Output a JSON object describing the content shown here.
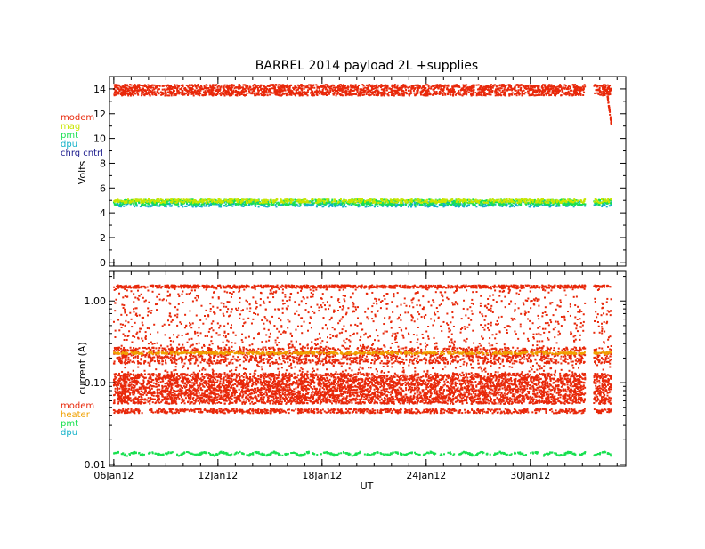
{
  "title": "BARREL 2014 payload 2L +supplies",
  "chart_data": [
    {
      "type": "scatter",
      "ylabel": "Volts",
      "xlabel": "",
      "ylim": [
        -0.3,
        15
      ],
      "yticks": [
        0,
        2,
        4,
        6,
        8,
        10,
        12,
        14
      ],
      "legend_position": "left-outside",
      "series": [
        {
          "name": "modem",
          "color": "#e8280a",
          "y_center": 13.9,
          "y_spread": 0.45
        },
        {
          "name": "mag",
          "color": "#c8e600",
          "y_center": 4.95,
          "y_spread": 0.15
        },
        {
          "name": "pmt",
          "color": "#18e050",
          "y_center": 4.85,
          "y_spread": 0.22
        },
        {
          "name": "dpu",
          "color": "#10b0c8",
          "y_center": 4.7,
          "y_spread": 0.22
        },
        {
          "name": "chrg cntrl",
          "color": "#1a1a8c",
          "y_center": null,
          "y_spread": null
        }
      ]
    },
    {
      "type": "scatter",
      "ylabel": "current (A)",
      "xlabel": "UT",
      "yscale": "log",
      "ylim": [
        0.0095,
        2.3
      ],
      "yticks": [
        0.01,
        0.1,
        1.0
      ],
      "ytick_labels": [
        "0.01",
        "0.10",
        "1.00"
      ],
      "legend_position": "left-outside",
      "series": [
        {
          "name": "modem",
          "color": "#e8280a",
          "y_center": 0.085,
          "y_range": [
            0.045,
            1.5
          ]
        },
        {
          "name": "heater",
          "color": "#f0a000",
          "y_center": 0.23,
          "y_range": [
            0.21,
            0.25
          ]
        },
        {
          "name": "pmt",
          "color": "#18e050",
          "y_center": 0.0135,
          "y_range": [
            0.013,
            0.0145
          ]
        },
        {
          "name": "dpu",
          "color": "#10b0c8",
          "y_center": null,
          "y_range": null
        }
      ]
    }
  ],
  "x_axis": {
    "label": "UT",
    "range_days": [
      "05Jan12 18:00",
      "04Feb12 12:00"
    ],
    "ticks": [
      {
        "date": "06Jan12",
        "label": "06Jan12"
      },
      {
        "date": "12Jan12",
        "label": "12Jan12"
      },
      {
        "date": "18Jan12",
        "label": "18Jan12"
      },
      {
        "date": "24Jan12",
        "label": "24Jan12"
      },
      {
        "date": "30Jan12",
        "label": "30Jan12"
      }
    ],
    "data_segments": [
      {
        "start": "06Jan12 00:00",
        "end": "02Feb12 04:00"
      },
      {
        "start": "02Feb12 16:00",
        "end": "03Feb12 16:00"
      }
    ]
  }
}
